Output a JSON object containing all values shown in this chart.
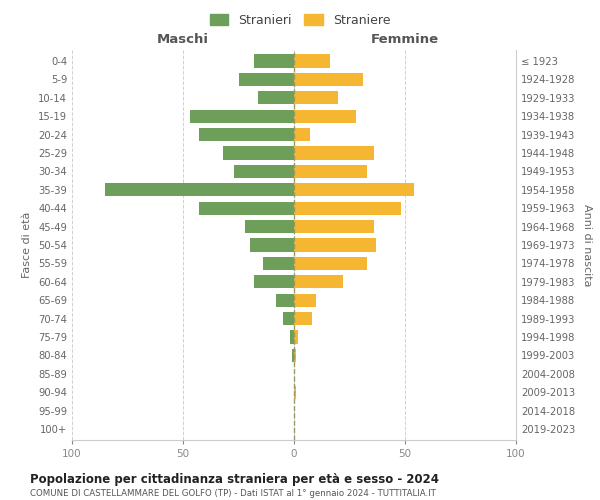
{
  "age_groups": [
    "0-4",
    "5-9",
    "10-14",
    "15-19",
    "20-24",
    "25-29",
    "30-34",
    "35-39",
    "40-44",
    "45-49",
    "50-54",
    "55-59",
    "60-64",
    "65-69",
    "70-74",
    "75-79",
    "80-84",
    "85-89",
    "90-94",
    "95-99",
    "100+"
  ],
  "birth_years": [
    "2019-2023",
    "2014-2018",
    "2009-2013",
    "2004-2008",
    "1999-2003",
    "1994-1998",
    "1989-1993",
    "1984-1988",
    "1979-1983",
    "1974-1978",
    "1969-1973",
    "1964-1968",
    "1959-1963",
    "1954-1958",
    "1949-1953",
    "1944-1948",
    "1939-1943",
    "1934-1938",
    "1929-1933",
    "1924-1928",
    "≤ 1923"
  ],
  "maschi": [
    18,
    25,
    16,
    47,
    43,
    32,
    27,
    85,
    43,
    22,
    20,
    14,
    18,
    8,
    5,
    2,
    1,
    0,
    0,
    0,
    0
  ],
  "femmine": [
    16,
    31,
    20,
    28,
    7,
    36,
    33,
    54,
    48,
    36,
    37,
    33,
    22,
    10,
    8,
    2,
    1,
    0,
    1,
    0,
    0
  ],
  "color_maschi": "#6d9e5a",
  "color_femmine": "#f5b731",
  "title": "Popolazione per cittadinanza straniera per età e sesso - 2024",
  "subtitle": "COMUNE DI CASTELLAMMARE DEL GOLFO (TP) - Dati ISTAT al 1° gennaio 2024 - TUTTITALIA.IT",
  "ylabel_left": "Fasce di età",
  "ylabel_right": "Anni di nascita",
  "xlabel_left": "Maschi",
  "xlabel_right": "Femmine",
  "legend_stranieri": "Stranieri",
  "legend_straniere": "Straniere",
  "xlim": 100,
  "background_color": "#ffffff",
  "grid_color": "#d0d0d0"
}
